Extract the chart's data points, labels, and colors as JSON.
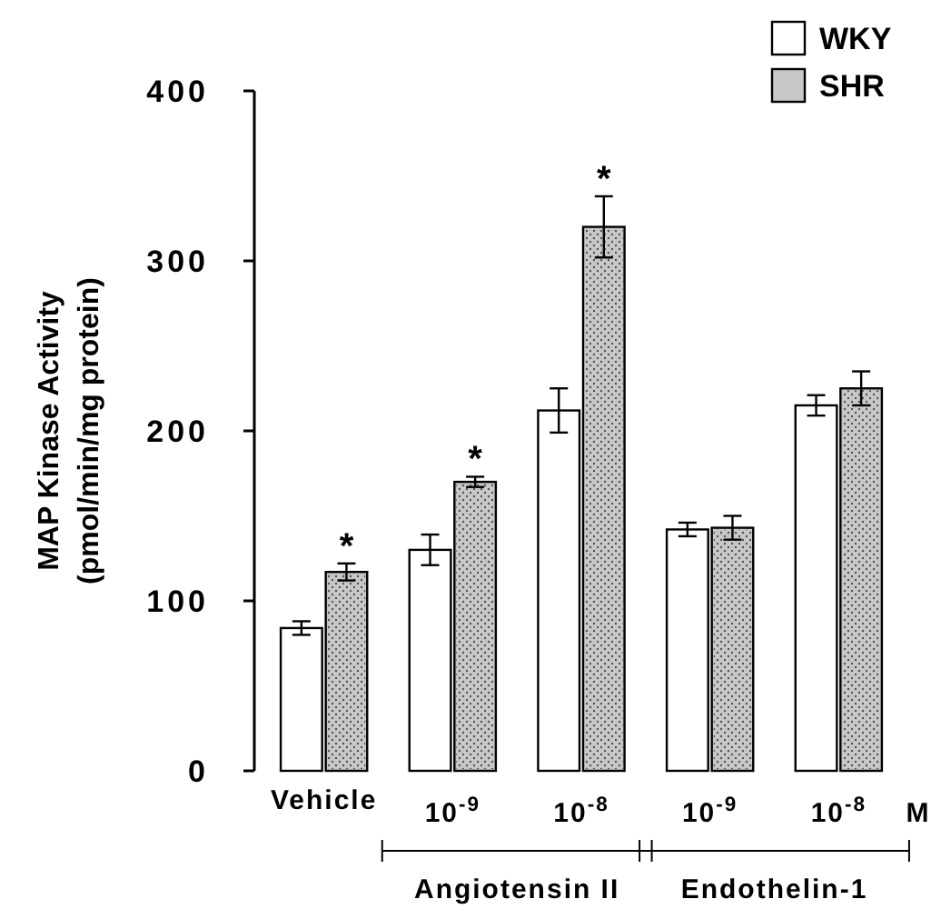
{
  "chart_data": {
    "type": "bar",
    "ylabel": "MAP Kinase Activity\n(pmol/min/mg protein)",
    "xlabel": "M",
    "categories": [
      "Vehicle",
      "10$^{-9}$",
      "10$^{-8}$",
      "10$^{-9}$",
      "10$^{-8}$"
    ],
    "series": [
      {
        "name": "WKY",
        "color": "#ffffff",
        "values": [
          84,
          130,
          212,
          142,
          215
        ],
        "errors": [
          4,
          9,
          13,
          4,
          6
        ]
      },
      {
        "name": "SHR",
        "color": "#c8c8c8",
        "values": [
          117,
          170,
          320,
          143,
          225
        ],
        "errors": [
          5,
          3,
          18,
          7,
          10
        ],
        "value_labels": [
          "*",
          "*",
          "*",
          null,
          null
        ]
      }
    ],
    "ylim": [
      0,
      400
    ],
    "yticks": [
      0,
      100,
      200,
      300,
      400
    ],
    "grid": false,
    "legend": "top right",
    "annotations": [
      "Angiotensin II",
      "Endothelin-1"
    ]
  }
}
